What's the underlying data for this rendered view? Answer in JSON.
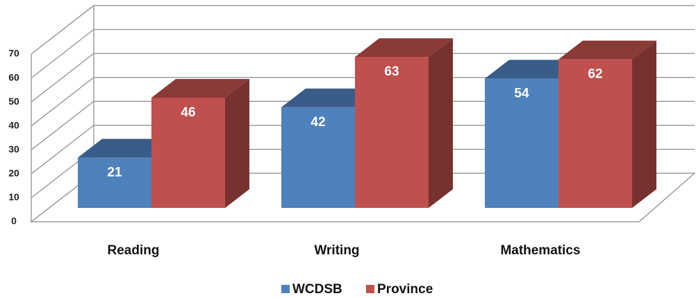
{
  "chart_data": {
    "type": "bar3d",
    "categories": [
      "Reading",
      "Writing",
      "Mathematics"
    ],
    "series": [
      {
        "name": "WCDSB",
        "color": "#4f81bd",
        "values": [
          21,
          42,
          54
        ]
      },
      {
        "name": "Province",
        "color": "#c0504d",
        "values": [
          46,
          63,
          62
        ]
      }
    ],
    "ylim": [
      0,
      70
    ],
    "yticks": [
      0,
      10,
      20,
      30,
      40,
      50,
      60,
      70
    ],
    "grid": true,
    "legend": "bottom"
  }
}
